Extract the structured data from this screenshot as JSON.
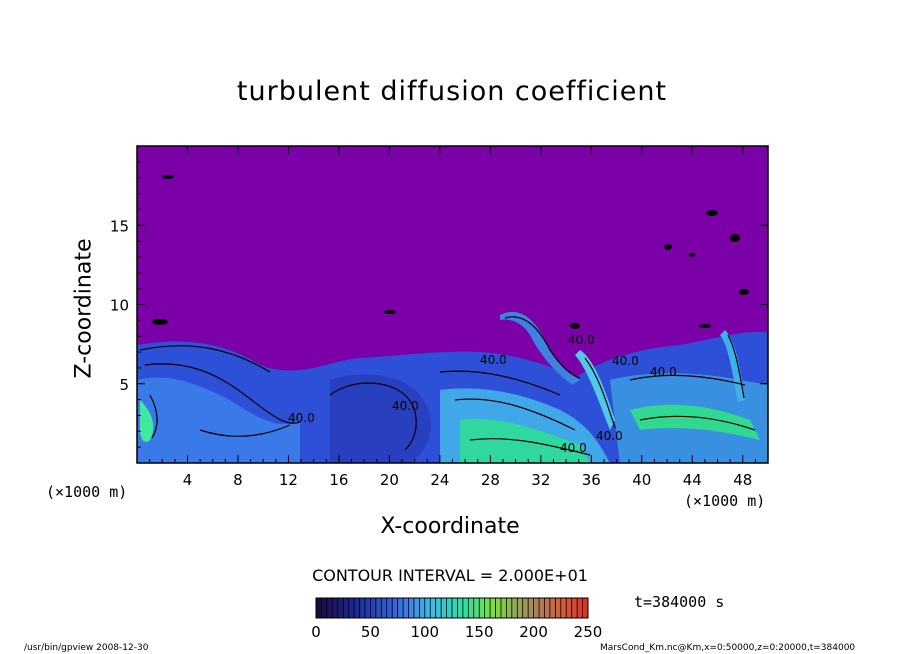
{
  "chart_data": {
    "type": "heatmap",
    "title": "turbulent diffusion coefficient",
    "xlabel": "X-coordinate",
    "ylabel": "Z-coordinate",
    "x_unit_left": "(×1000 m)",
    "x_unit_right": "(×1000 m)",
    "xlim": [
      0,
      50
    ],
    "ylim": [
      0,
      20
    ],
    "x_ticks": [
      "4",
      "8",
      "12",
      "16",
      "20",
      "24",
      "28",
      "32",
      "36",
      "40",
      "44",
      "48"
    ],
    "x_tick_values": [
      4,
      8,
      12,
      16,
      20,
      24,
      28,
      32,
      36,
      40,
      44,
      48
    ],
    "y_ticks": [
      "5",
      "10",
      "15"
    ],
    "y_tick_values": [
      5,
      10,
      15
    ],
    "contour_interval": "CONTOUR INTERVAL = 2.000E+01",
    "contour_labels": [
      "40.0",
      "40.0",
      "40.0",
      "40.0",
      "40.0",
      "40.0",
      "40.0",
      "40.0"
    ],
    "colorbar": {
      "ticks": [
        "0",
        "50",
        "100",
        "150",
        "200",
        "250"
      ],
      "tick_values": [
        0,
        50,
        100,
        150,
        200,
        250
      ],
      "range": [
        0,
        250
      ]
    },
    "time_label": "t=384000 s",
    "background_color": "#7b00a8",
    "grid": false
  },
  "footer": {
    "left": "/usr/bin/gpview   2008-12-30",
    "right": "MarsCond_Km.nc@Km,x=0:50000,z=0:20000,t=384000"
  }
}
